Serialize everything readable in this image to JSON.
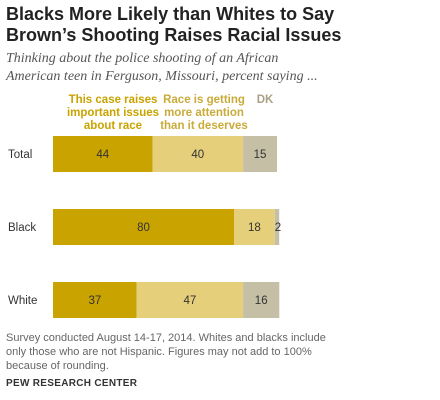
{
  "chart_data": {
    "type": "bar",
    "stacked": true,
    "orientation": "horizontal",
    "title_lines": [
      "Blacks More Likely than Whites to Say",
      "Brown’s Shooting Raises Racial Issues"
    ],
    "subtitle_lines": [
      "Thinking about the police shooting of an African",
      "American teen in Ferguson, Missouri, percent saying ..."
    ],
    "categories": [
      "Total",
      "Black",
      "White"
    ],
    "series": [
      {
        "name_lines": [
          "This case raises",
          "important issues",
          "about race"
        ],
        "color": "#C9A300",
        "values": [
          44,
          80,
          37
        ]
      },
      {
        "name_lines": [
          "Race is getting",
          "more attention",
          "than it deserves"
        ],
        "color": "#E6CF7A",
        "values": [
          40,
          18,
          47
        ]
      },
      {
        "name_lines": [
          "DK"
        ],
        "color": "#C5BFA5",
        "values": [
          15,
          2,
          16
        ]
      }
    ],
    "xlim": [
      0,
      99
    ]
  },
  "notes_lines": [
    "Survey conducted August 14-17, 2014. Whites and blacks include",
    "only those who are not Hispanic. Figures may not add to 100%",
    "because of rounding."
  ],
  "source": "PEW RESEARCH CENTER"
}
